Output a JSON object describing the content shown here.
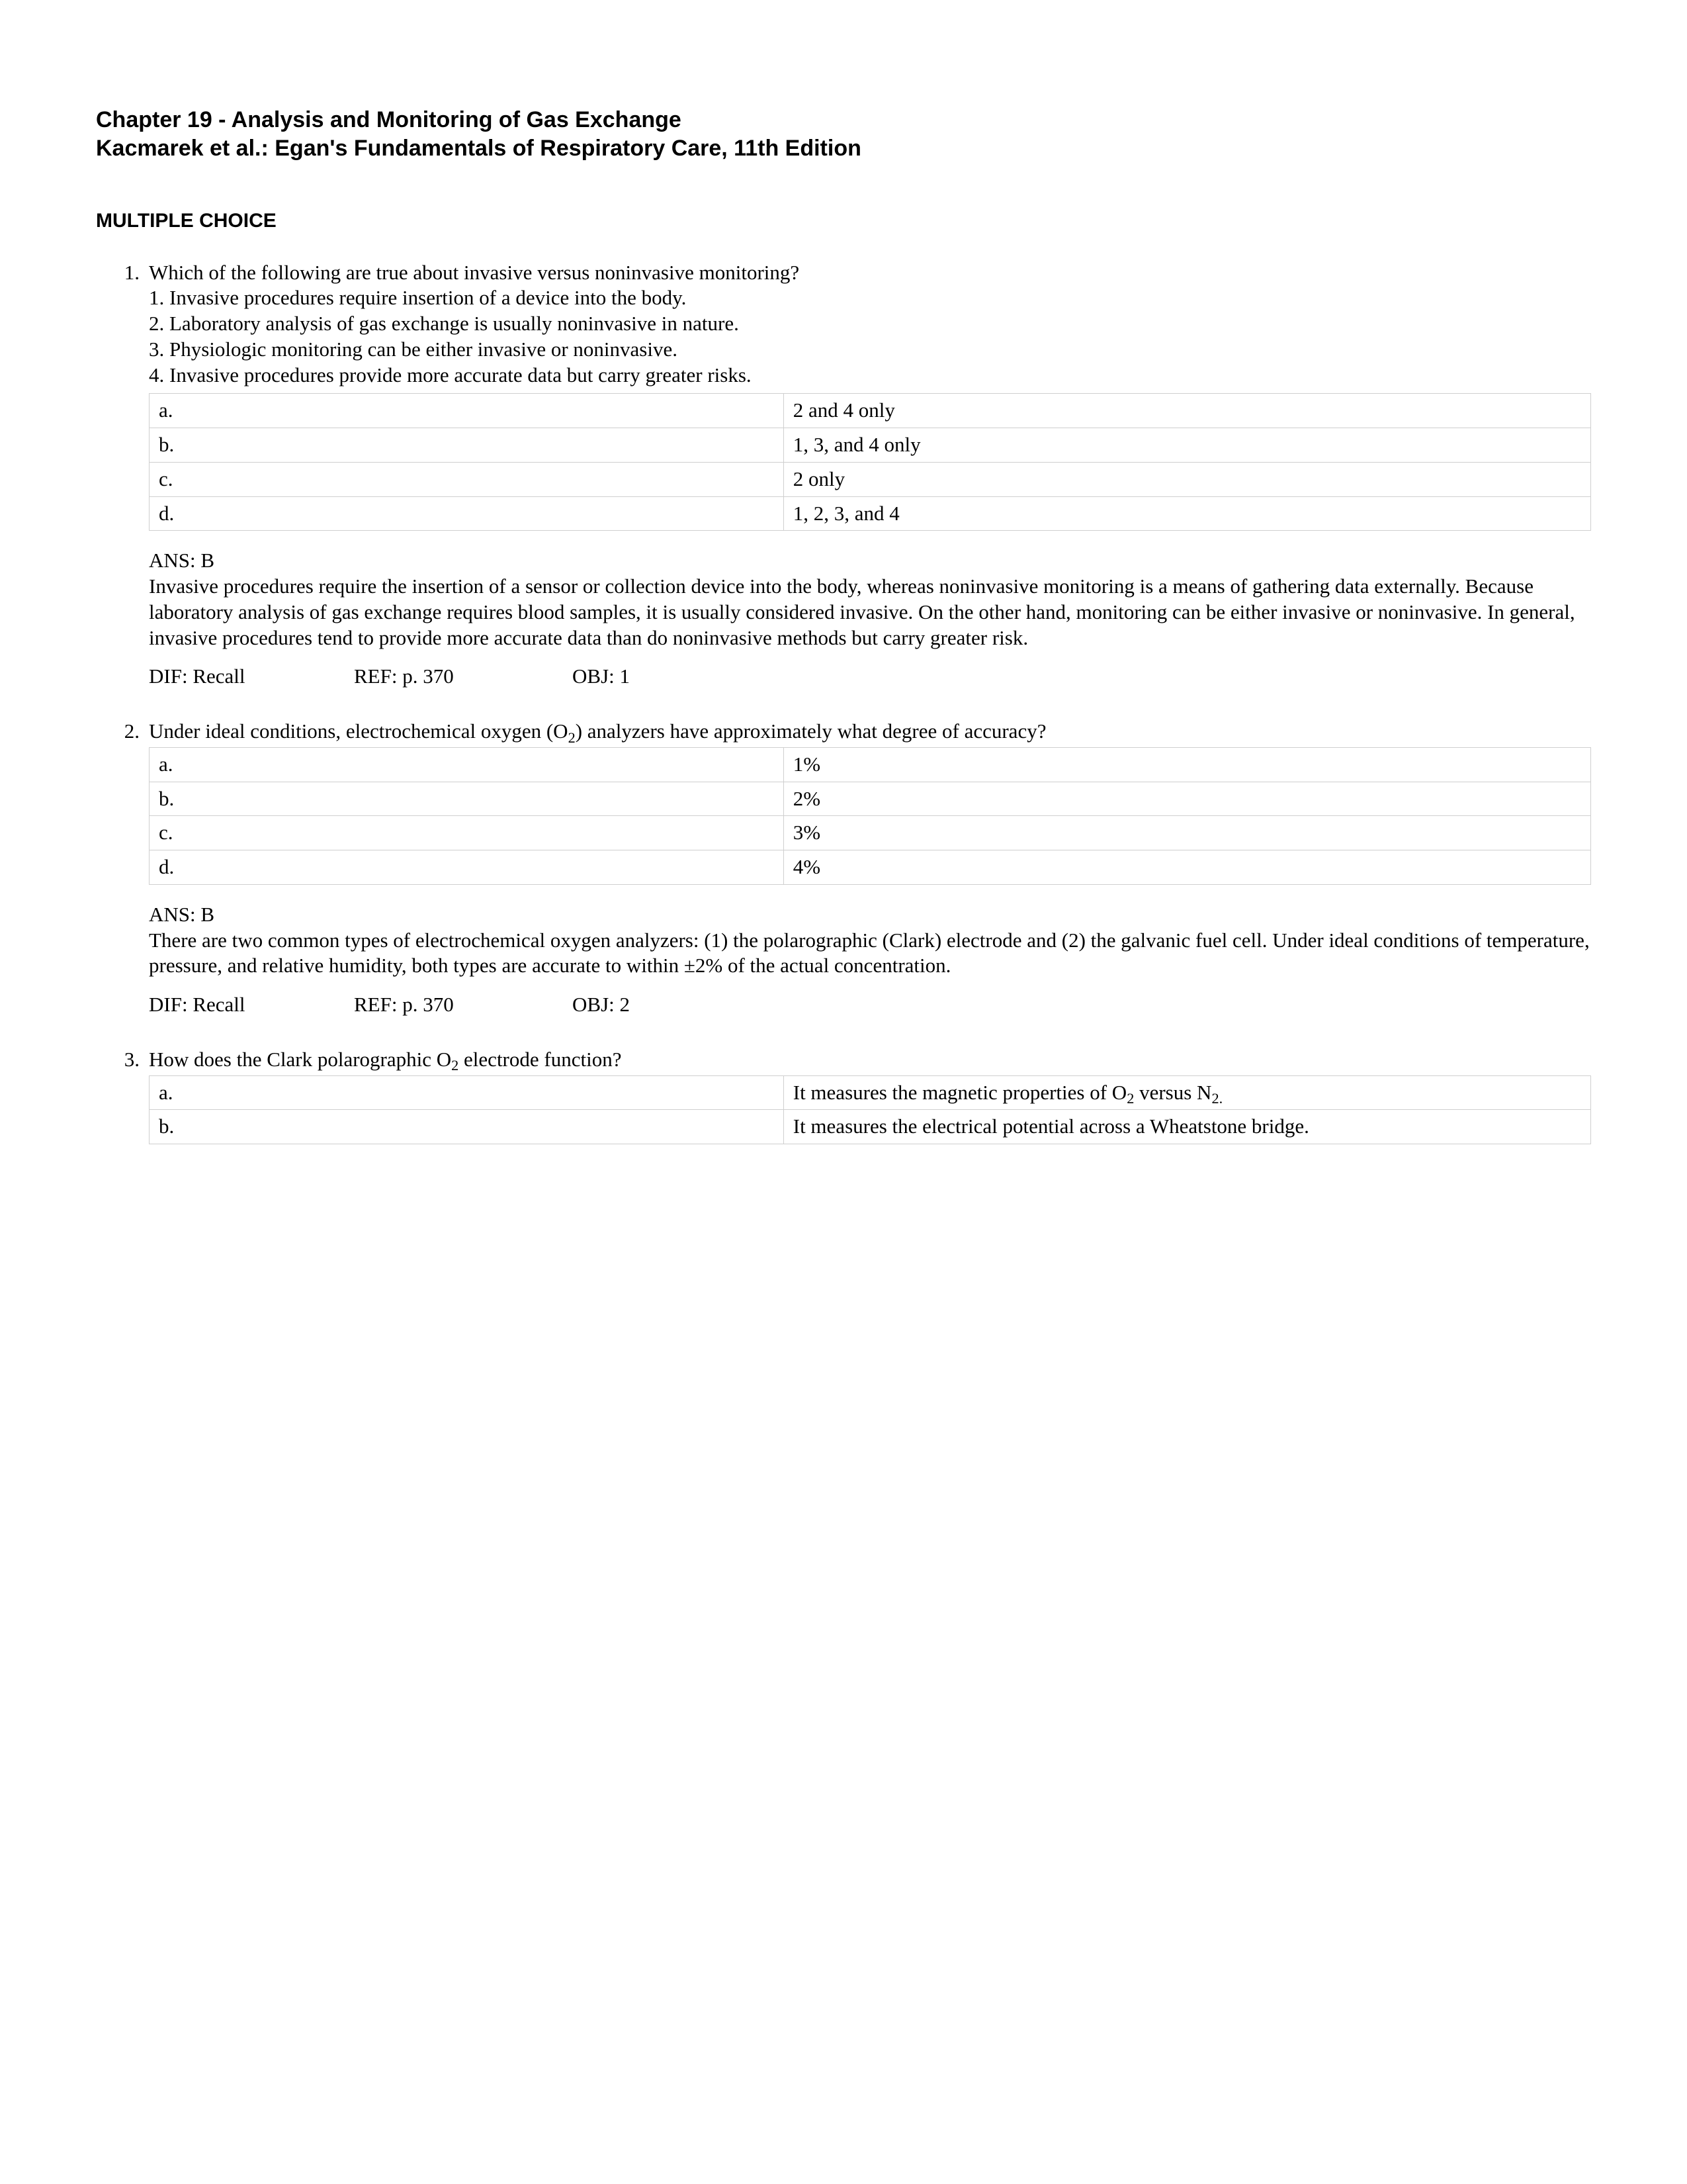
{
  "header": {
    "line1": "Chapter 19 - Analysis and Monitoring of Gas Exchange",
    "line2": "Kacmarek et al.: Egan's Fundamentals of Respiratory Care, 11th Edition"
  },
  "section_title": "MULTIPLE CHOICE",
  "questions": [
    {
      "num": "1.",
      "text": "Which of the following are true about invasive versus noninvasive monitoring?",
      "statements": [
        "1. Invasive procedures require insertion of a device into the body.",
        "2. Laboratory analysis of gas exchange is usually noninvasive in nature.",
        "3. Physiologic monitoring can be either invasive or noninvasive.",
        "4. Invasive procedures provide more accurate data but carry greater risks."
      ],
      "options": [
        {
          "letter": "a.",
          "text": "2 and 4 only"
        },
        {
          "letter": "b.",
          "text": "1, 3, and 4 only"
        },
        {
          "letter": "c.",
          "text": "2 only"
        },
        {
          "letter": "d.",
          "text": "1, 2, 3, and 4"
        }
      ],
      "ans": "ANS:  B",
      "explanation": "Invasive procedures require the insertion of a sensor or collection device into the body, whereas noninvasive monitoring is a means of gathering data externally. Because laboratory analysis of gas exchange requires blood samples, it is usually considered invasive. On the other hand, monitoring can be either invasive or noninvasive. In general, invasive procedures tend to provide more accurate data than do noninvasive methods but carry greater risk.",
      "tags": {
        "dif": "DIF:   Recall",
        "ref": "REF:   p. 370",
        "obj": "OBJ:   1"
      }
    },
    {
      "num": "2.",
      "text_html": "Under ideal conditions, electrochemical oxygen (O<sub>2</sub>) analyzers have approximately what degree of accuracy?",
      "statements": [],
      "options": [
        {
          "letter": "a.",
          "text": "1%"
        },
        {
          "letter": "b.",
          "text": "2%"
        },
        {
          "letter": "c.",
          "text": "3%"
        },
        {
          "letter": "d.",
          "text": "4%"
        }
      ],
      "ans": "ANS:  B",
      "explanation": "There are two common types of electrochemical oxygen analyzers: (1) the polarographic (Clark) electrode and (2) the galvanic fuel cell. Under ideal conditions of temperature, pressure, and relative humidity, both types are accurate to within ±2% of the actual concentration.",
      "tags": {
        "dif": "DIF:   Recall",
        "ref": "REF:   p. 370",
        "obj": "OBJ:   2"
      }
    },
    {
      "num": "3.",
      "text_html": "How does the Clark polarographic O<sub>2</sub> electrode function?",
      "statements": [],
      "options": [
        {
          "letter": "a.",
          "text_html": "It measures the magnetic properties of O<sub>2</sub> versus N<sub>2.</sub>"
        },
        {
          "letter": "b.",
          "text": "It measures the electrical potential across a Wheatstone bridge."
        }
      ],
      "ans": null,
      "explanation": null,
      "tags": null
    }
  ]
}
